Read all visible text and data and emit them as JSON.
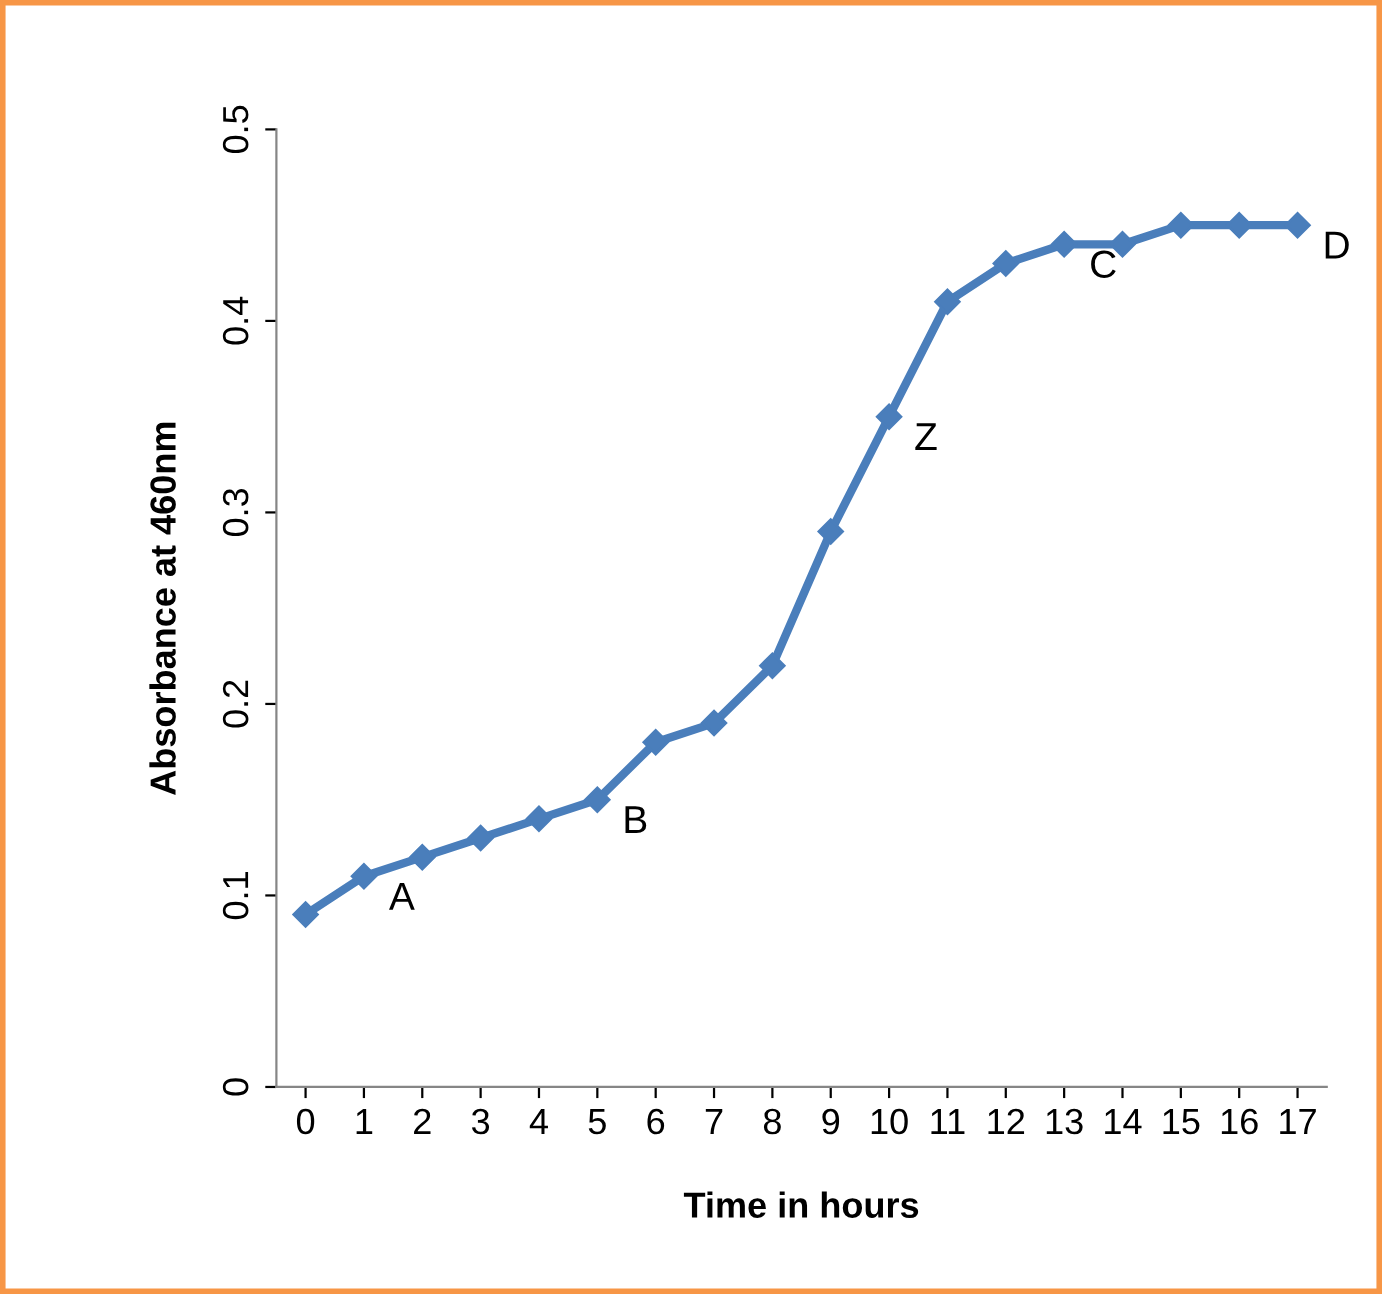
{
  "chart_data": {
    "type": "line",
    "xlabel": "Time in hours",
    "ylabel": "Absorbance at 460nm",
    "categories": [
      "0",
      "1",
      "2",
      "3",
      "4",
      "5",
      "6",
      "7",
      "8",
      "9",
      "10",
      "11",
      "12",
      "13",
      "14",
      "15",
      "16",
      "17"
    ],
    "series": [
      {
        "color": "#4a7ebb",
        "values": [
          0.09,
          0.11,
          0.12,
          0.13,
          0.14,
          0.15,
          0.18,
          0.19,
          0.22,
          0.29,
          0.35,
          0.41,
          0.43,
          0.44,
          0.44,
          0.45,
          0.45,
          0.45
        ]
      }
    ],
    "ylim": [
      0,
      0.5
    ],
    "yticks": [
      0,
      0.1,
      0.2,
      0.3,
      0.4,
      0.5
    ],
    "marker": "diamond",
    "line_style": "solid",
    "grid": false,
    "legend": false,
    "annotations": [
      {
        "text": "A",
        "x": "1",
        "y": 0.11
      },
      {
        "text": "B",
        "x": "5",
        "y": 0.15
      },
      {
        "text": "Z",
        "x": "10",
        "y": 0.35
      },
      {
        "text": "C",
        "x": "13",
        "y": 0.44
      },
      {
        "text": "D",
        "x": "17",
        "y": 0.45
      }
    ]
  }
}
